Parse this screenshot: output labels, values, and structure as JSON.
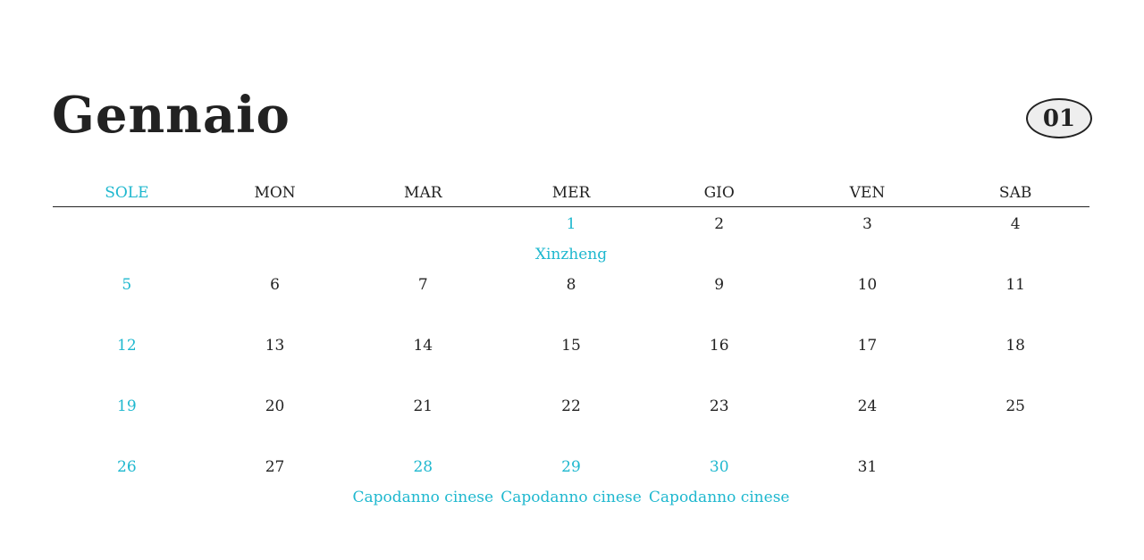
{
  "header": {
    "title": "Gennaio",
    "number": "01"
  },
  "weekdays": [
    "SOLE",
    "MON",
    "MAR",
    "MER",
    "GIO",
    "VEN",
    "SAB"
  ],
  "weeks": [
    [
      null,
      null,
      null,
      {
        "day": 1,
        "note": "Xinzheng"
      },
      {
        "day": 2
      },
      {
        "day": 3
      },
      {
        "day": 4
      }
    ],
    [
      {
        "day": 5
      },
      {
        "day": 6
      },
      {
        "day": 7
      },
      {
        "day": 8
      },
      {
        "day": 9
      },
      {
        "day": 10
      },
      {
        "day": 11
      }
    ],
    [
      {
        "day": 12
      },
      {
        "day": 13
      },
      {
        "day": 14
      },
      {
        "day": 15
      },
      {
        "day": 16
      },
      {
        "day": 17
      },
      {
        "day": 18
      }
    ],
    [
      {
        "day": 19
      },
      {
        "day": 20
      },
      {
        "day": 21
      },
      {
        "day": 22
      },
      {
        "day": 23
      },
      {
        "day": 24
      },
      {
        "day": 25
      }
    ],
    [
      {
        "day": 26
      },
      {
        "day": 27
      },
      {
        "day": 28,
        "note": "Capodanno cinese"
      },
      {
        "day": 29,
        "note": "Capodanno cinese"
      },
      {
        "day": 30,
        "note": "Capodanno cinese"
      },
      {
        "day": 31
      },
      null
    ]
  ]
}
